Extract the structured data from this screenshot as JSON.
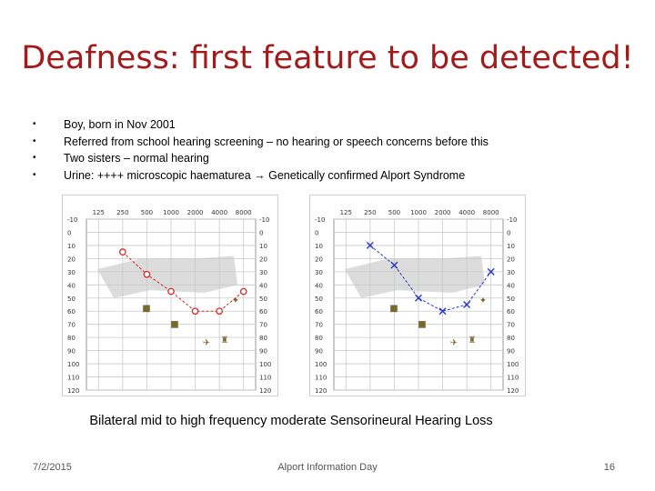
{
  "slide": {
    "title": "Deafness: first feature to be detected!",
    "bullets": [
      "Boy, born in Nov 2001",
      "Referred from school hearing screening – no hearing or speech concerns before this",
      "Two sisters – normal hearing",
      "Urine: ++++ microscopic haematurea → Genetically confirmed Alport Syndrome"
    ],
    "caption": "Bilateral mid to high frequency moderate Sensorineural Hearing Loss",
    "footer": {
      "date": "7/2/2015",
      "center": "Alport Information Day",
      "page": "16"
    }
  },
  "chart_data": [
    {
      "type": "line",
      "x": [
        250,
        500,
        1000,
        2000,
        4000,
        8000
      ],
      "x_tick_labels": [
        "125",
        "250",
        "500",
        "1000",
        "2000",
        "4000",
        "8000"
      ],
      "y_tick_labels": [
        "-10",
        "0",
        "10",
        "20",
        "30",
        "40",
        "50",
        "60",
        "70",
        "80",
        "90",
        "100",
        "110",
        "120"
      ],
      "ylim": [
        -10,
        120
      ],
      "y_inverted": true,
      "series": [
        {
          "marker": "circle",
          "color": "#d42a2a",
          "values": [
            15,
            32,
            45,
            60,
            60,
            45
          ]
        }
      ]
    },
    {
      "type": "line",
      "x": [
        250,
        500,
        1000,
        2000,
        4000,
        8000
      ],
      "x_tick_labels": [
        "125",
        "250",
        "500",
        "1000",
        "2000",
        "4000",
        "8000"
      ],
      "y_tick_labels": [
        "-10",
        "0",
        "10",
        "20",
        "30",
        "40",
        "50",
        "60",
        "70",
        "80",
        "90",
        "100",
        "110",
        "120"
      ],
      "ylim": [
        -10,
        120
      ],
      "y_inverted": true,
      "series": [
        {
          "marker": "cross",
          "color": "#2a38c8",
          "values": [
            10,
            25,
            50,
            60,
            55,
            30
          ]
        }
      ]
    }
  ]
}
